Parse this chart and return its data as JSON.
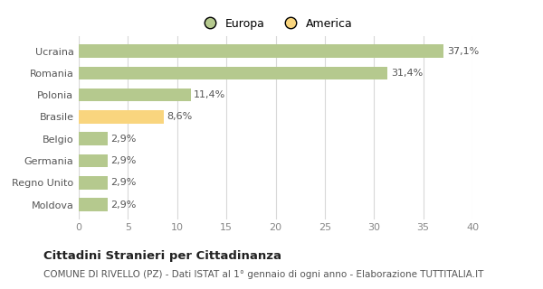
{
  "categories": [
    "Moldova",
    "Regno Unito",
    "Germania",
    "Belgio",
    "Brasile",
    "Polonia",
    "Romania",
    "Ucraina"
  ],
  "values": [
    2.9,
    2.9,
    2.9,
    2.9,
    8.6,
    11.4,
    31.4,
    37.1
  ],
  "colors": [
    "#b5c98e",
    "#b5c98e",
    "#b5c98e",
    "#b5c98e",
    "#f9d57e",
    "#b5c98e",
    "#b5c98e",
    "#b5c98e"
  ],
  "labels": [
    "2,9%",
    "2,9%",
    "2,9%",
    "2,9%",
    "8,6%",
    "11,4%",
    "31,4%",
    "37,1%"
  ],
  "legend": [
    {
      "label": "Europa",
      "color": "#b5c98e"
    },
    {
      "label": "America",
      "color": "#f9d57e"
    }
  ],
  "xlim": [
    0,
    40
  ],
  "xticks": [
    0,
    5,
    10,
    15,
    20,
    25,
    30,
    35,
    40
  ],
  "title": "Cittadini Stranieri per Cittadinanza",
  "subtitle": "COMUNE DI RIVELLO (PZ) - Dati ISTAT al 1° gennaio di ogni anno - Elaborazione TUTTITALIA.IT",
  "background_color": "#ffffff",
  "grid_color": "#d8d8d8",
  "bar_height": 0.6,
  "title_fontsize": 9.5,
  "subtitle_fontsize": 7.5,
  "label_fontsize": 8,
  "tick_fontsize": 8,
  "legend_fontsize": 9,
  "ylabel_fontsize": 8
}
